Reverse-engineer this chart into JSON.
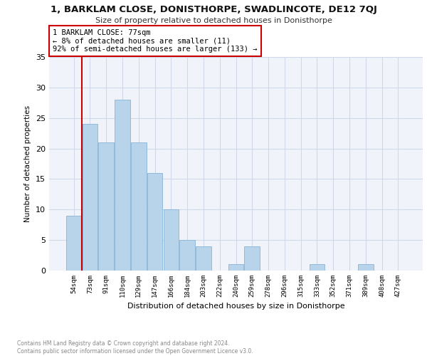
{
  "title1": "1, BARKLAM CLOSE, DONISTHORPE, SWADLINCOTE, DE12 7QJ",
  "title2": "Size of property relative to detached houses in Donisthorpe",
  "xlabel": "Distribution of detached houses by size in Donisthorpe",
  "ylabel": "Number of detached properties",
  "categories": [
    "54sqm",
    "73sqm",
    "91sqm",
    "110sqm",
    "129sqm",
    "147sqm",
    "166sqm",
    "184sqm",
    "203sqm",
    "222sqm",
    "240sqm",
    "259sqm",
    "278sqm",
    "296sqm",
    "315sqm",
    "333sqm",
    "352sqm",
    "371sqm",
    "389sqm",
    "408sqm",
    "427sqm"
  ],
  "values": [
    9,
    24,
    21,
    28,
    21,
    16,
    10,
    5,
    4,
    0,
    1,
    4,
    0,
    0,
    0,
    1,
    0,
    0,
    1,
    0,
    0
  ],
  "bar_color": "#b8d4ea",
  "bar_edge_color": "#88b4d8",
  "vline_color": "#cc0000",
  "vline_x": 0.5,
  "annotation_text": "1 BARKLAM CLOSE: 77sqm\n← 8% of detached houses are smaller (11)\n92% of semi-detached houses are larger (133) →",
  "annotation_box_facecolor": "#ffffff",
  "annotation_box_edgecolor": "#cc0000",
  "footer": "Contains HM Land Registry data © Crown copyright and database right 2024.\nContains public sector information licensed under the Open Government Licence v3.0.",
  "ylim": [
    0,
    35
  ],
  "yticks": [
    0,
    5,
    10,
    15,
    20,
    25,
    30,
    35
  ],
  "grid_color": "#d0d8e8",
  "fig_width": 6.0,
  "fig_height": 5.0,
  "dpi": 100
}
